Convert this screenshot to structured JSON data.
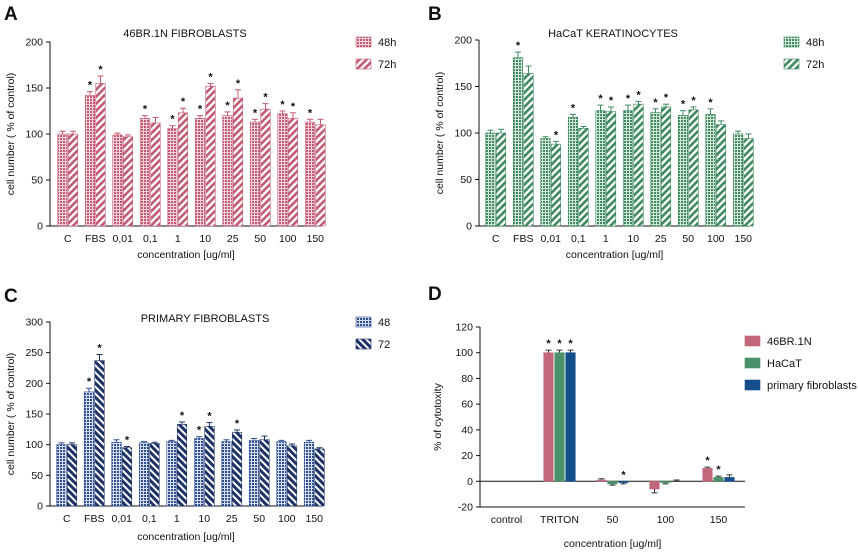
{
  "chart_data": [
    {
      "panel": "A",
      "type": "bar",
      "title": "46BR.1N FIBROBLASTS",
      "xlabel": "concentration [ug/ml]",
      "ylabel": "cell number ( % of control)",
      "ylim": [
        0,
        200
      ],
      "yticks": [
        "0",
        "50",
        "100",
        "150",
        "200"
      ],
      "categories": [
        "C",
        "FBS",
        "0,01",
        "0,1",
        "1",
        "10",
        "25",
        "50",
        "100",
        "150"
      ],
      "series": [
        {
          "name": "48h",
          "values": [
            100,
            142,
            99,
            117,
            106,
            117,
            120,
            113,
            122,
            113
          ],
          "errors": [
            3,
            4,
            2,
            3,
            3,
            3,
            4,
            3,
            3,
            3
          ],
          "sig": [
            false,
            true,
            false,
            true,
            true,
            true,
            true,
            true,
            true,
            true
          ]
        },
        {
          "name": "72h",
          "values": [
            100,
            155,
            97,
            112,
            123,
            152,
            139,
            127,
            117,
            110
          ],
          "errors": [
            3,
            8,
            2,
            6,
            5,
            3,
            9,
            6,
            6,
            6
          ],
          "sig": [
            false,
            true,
            false,
            false,
            true,
            true,
            true,
            true,
            true,
            false
          ]
        }
      ]
    },
    {
      "panel": "B",
      "type": "bar",
      "title": "HaCaT KERATINOCYTES",
      "xlabel": "concentration [ug/ml]",
      "ylabel": "cell number ( % of control)",
      "ylim": [
        0,
        200
      ],
      "yticks": [
        "0",
        "50",
        "100",
        "150",
        "200"
      ],
      "categories": [
        "C",
        "FBS",
        "0,01",
        "0,1",
        "1",
        "10",
        "25",
        "50",
        "100",
        "150"
      ],
      "series": [
        {
          "name": "48h",
          "values": [
            100,
            181,
            94,
            117,
            124,
            124,
            122,
            119,
            120,
            99
          ],
          "errors": [
            3,
            6,
            2,
            3,
            6,
            6,
            4,
            5,
            6,
            3
          ],
          "sig": [
            false,
            true,
            false,
            true,
            true,
            true,
            true,
            true,
            true,
            false
          ]
        },
        {
          "name": "72h",
          "values": [
            100,
            164,
            88,
            105,
            123,
            131,
            128,
            125,
            109,
            94
          ],
          "errors": [
            4,
            8,
            3,
            2,
            5,
            3,
            3,
            3,
            4,
            5
          ],
          "sig": [
            false,
            false,
            true,
            false,
            true,
            true,
            true,
            true,
            false,
            false
          ]
        }
      ]
    },
    {
      "panel": "C",
      "type": "bar",
      "title": "PRIMARY FIBROBLASTS",
      "xlabel": "concentration [ug/ml]",
      "ylabel": "cell number ( % of control)",
      "ylim": [
        0,
        300
      ],
      "yticks": [
        "0",
        "50",
        "100",
        "150",
        "200",
        "250",
        "300"
      ],
      "categories": [
        "C",
        "FBS",
        "0,01",
        "0,1",
        "1",
        "10",
        "25",
        "50",
        "100",
        "150"
      ],
      "series": [
        {
          "name": "48",
          "values": [
            100,
            186,
            104,
            103,
            105,
            110,
            105,
            107,
            105,
            104
          ],
          "errors": [
            3,
            6,
            4,
            2,
            2,
            3,
            3,
            3,
            2,
            3
          ],
          "sig": [
            false,
            true,
            false,
            false,
            false,
            true,
            false,
            false,
            false,
            false
          ]
        },
        {
          "name": "72",
          "values": [
            100,
            237,
            95,
            102,
            133,
            130,
            120,
            108,
            98,
            93
          ],
          "errors": [
            3,
            10,
            2,
            2,
            4,
            6,
            4,
            6,
            3,
            2
          ],
          "sig": [
            false,
            true,
            true,
            false,
            true,
            true,
            true,
            false,
            false,
            false
          ]
        }
      ]
    },
    {
      "panel": "D",
      "type": "bar",
      "xlabel": "concentration [ug/ml]",
      "ylabel": "% of cytotoxity",
      "ylim": [
        -20,
        120
      ],
      "yticks": [
        "-20",
        "0",
        "20",
        "40",
        "60",
        "80",
        "100",
        "120"
      ],
      "categories": [
        "control",
        "TRITON",
        "50",
        "100",
        "150"
      ],
      "series": [
        {
          "name": "46BR.1N",
          "values": [
            0,
            100,
            1,
            -6,
            10
          ],
          "errors": [
            0,
            2,
            1,
            3,
            1
          ],
          "sig": [
            false,
            true,
            false,
            false,
            true
          ]
        },
        {
          "name": "HaCaT",
          "values": [
            0,
            100,
            -2,
            -1,
            3
          ],
          "errors": [
            0,
            2,
            1,
            1,
            1
          ],
          "sig": [
            false,
            true,
            false,
            false,
            true
          ]
        },
        {
          "name": "primary fibroblasts",
          "values": [
            0,
            100,
            -1,
            0,
            3
          ],
          "errors": [
            0,
            2,
            1,
            1,
            2
          ],
          "sig": [
            false,
            true,
            true,
            false,
            false
          ]
        }
      ]
    }
  ],
  "styles": {
    "A": {
      "color": "#c25b72",
      "light": "#f6dde3"
    },
    "B": {
      "color": "#3e8a5e",
      "light": "#d9ecdf"
    },
    "C": {
      "color": "#2f4f8f",
      "light": "#dde4f2",
      "dark": "#1d3266"
    },
    "D": {
      "colors": [
        "#c2667a",
        "#4a9068",
        "#164e8c"
      ]
    }
  },
  "star_label": "*"
}
